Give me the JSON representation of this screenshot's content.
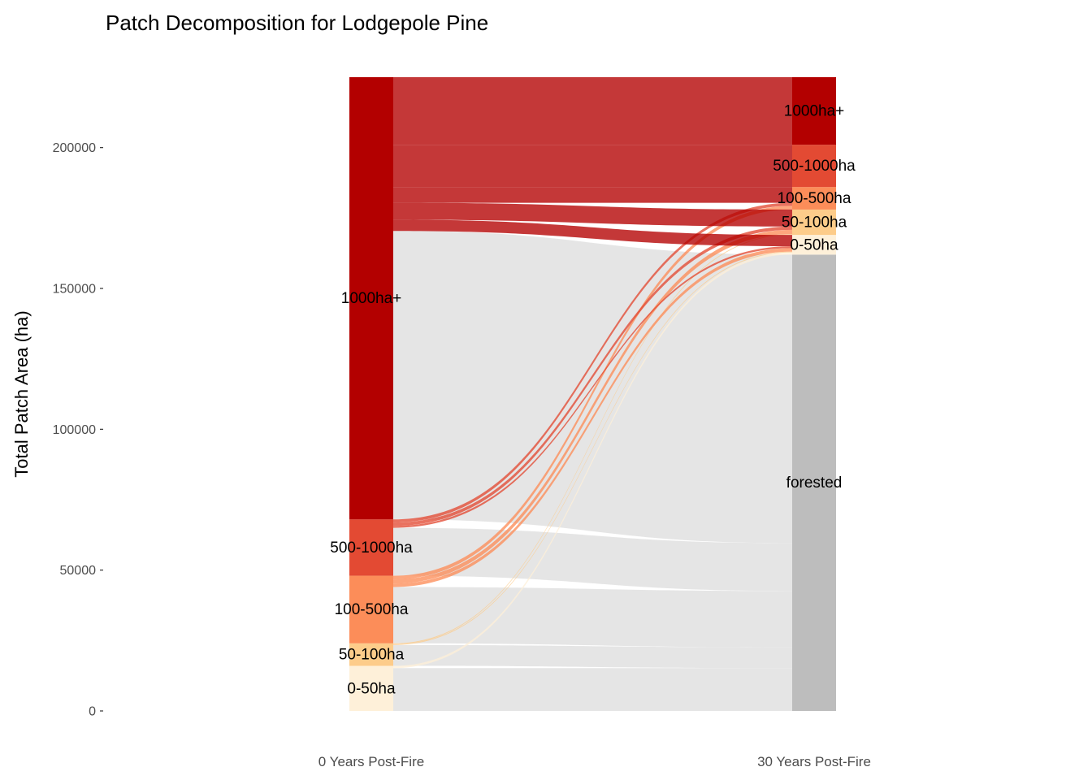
{
  "chart_data": {
    "type": "sankey",
    "title": "Patch Decomposition for Lodgepole Pine",
    "ylabel": "Total Patch Area (ha)",
    "xlabel": "",
    "ylim": [
      0,
      225000
    ],
    "yticks": [
      0,
      50000,
      100000,
      150000,
      200000
    ],
    "ytick_labels": [
      "0",
      "50000",
      "100000",
      "150000",
      "200000"
    ],
    "axes": [
      "0 Years Post-Fire",
      "30 Years Post-Fire"
    ],
    "colors": {
      "1000ha+": "#b30000",
      "500-1000ha": "#e34a33",
      "100-500ha": "#fc8d59",
      "50-100ha": "#fdcc8a",
      "0-50ha": "#fef0d9",
      "forested": "#bdbdbd",
      "flow_forested": "#e5e5e5"
    },
    "strata": [
      {
        "axis": "0 Years Post-Fire",
        "nodes": [
          {
            "name": "0-50ha",
            "label": "0-50ha",
            "value": 16000
          },
          {
            "name": "50-100ha",
            "label": "50-100ha",
            "value": 8000
          },
          {
            "name": "100-500ha",
            "label": "100-500ha",
            "value": 24000
          },
          {
            "name": "500-1000ha",
            "label": "500-1000ha",
            "value": 20000
          },
          {
            "name": "1000ha+",
            "label": "1000ha+",
            "value": 157000
          }
        ]
      },
      {
        "axis": "30 Years Post-Fire",
        "nodes": [
          {
            "name": "forested",
            "label": "forested",
            "value": 162000
          },
          {
            "name": "0-50ha",
            "label": "0-50ha",
            "value": 7000
          },
          {
            "name": "50-100ha",
            "label": "50-100ha",
            "value": 9000
          },
          {
            "name": "100-500ha",
            "label": "100-500ha",
            "value": 8000
          },
          {
            "name": "500-1000ha",
            "label": "500-1000ha",
            "value": 15000
          },
          {
            "name": "1000ha+",
            "label": "1000ha+",
            "value": 24000
          }
        ]
      }
    ],
    "flows": [
      {
        "from": "0-50ha",
        "to": "forested",
        "value": 15200
      },
      {
        "from": "0-50ha",
        "to": "0-50ha",
        "value": 800
      },
      {
        "from": "50-100ha",
        "to": "forested",
        "value": 7400
      },
      {
        "from": "50-100ha",
        "to": "0-50ha",
        "value": 300
      },
      {
        "from": "50-100ha",
        "to": "50-100ha",
        "value": 300
      },
      {
        "from": "100-500ha",
        "to": "forested",
        "value": 20000
      },
      {
        "from": "100-500ha",
        "to": "0-50ha",
        "value": 1200
      },
      {
        "from": "100-500ha",
        "to": "50-100ha",
        "value": 1500
      },
      {
        "from": "100-500ha",
        "to": "100-500ha",
        "value": 1300
      },
      {
        "from": "500-1000ha",
        "to": "forested",
        "value": 17000
      },
      {
        "from": "500-1000ha",
        "to": "0-50ha",
        "value": 700
      },
      {
        "from": "500-1000ha",
        "to": "50-100ha",
        "value": 1200
      },
      {
        "from": "500-1000ha",
        "to": "100-500ha",
        "value": 1100
      },
      {
        "from": "1000ha+",
        "to": "forested",
        "value": 102400
      },
      {
        "from": "1000ha+",
        "to": "0-50ha",
        "value": 4000
      },
      {
        "from": "1000ha+",
        "to": "50-100ha",
        "value": 6000
      },
      {
        "from": "1000ha+",
        "to": "100-500ha",
        "value": 5600
      },
      {
        "from": "1000ha+",
        "to": "500-1000ha",
        "value": 15000
      },
      {
        "from": "1000ha+",
        "to": "1000ha+",
        "value": 24000
      }
    ]
  }
}
